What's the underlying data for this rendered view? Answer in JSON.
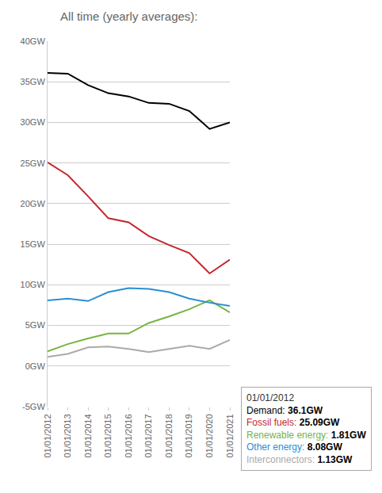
{
  "chart_data": {
    "type": "line",
    "title": "All time (yearly averages):",
    "categories": [
      "01/01/2012",
      "01/01/2013",
      "01/01/2014",
      "01/01/2015",
      "01/01/2016",
      "01/01/2017",
      "01/01/2018",
      "01/01/2019",
      "01/01/2020",
      "01/01/2021"
    ],
    "series": [
      {
        "name": "Demand",
        "color": "#000000",
        "values": [
          36.1,
          36.0,
          34.6,
          33.6,
          33.2,
          32.4,
          32.3,
          31.4,
          29.2,
          30.0
        ]
      },
      {
        "name": "Fossil fuels",
        "color": "#c0282e",
        "values": [
          25.09,
          23.5,
          20.9,
          18.2,
          17.7,
          16.0,
          14.9,
          13.9,
          11.4,
          13.1
        ]
      },
      {
        "name": "Renewable energy",
        "color": "#77b43f",
        "values": [
          1.81,
          2.7,
          3.4,
          4.0,
          4.0,
          5.3,
          6.1,
          7.0,
          8.1,
          6.6
        ]
      },
      {
        "name": "Other energy",
        "color": "#2a8fd1",
        "values": [
          8.08,
          8.3,
          8.0,
          9.1,
          9.6,
          9.5,
          9.1,
          8.3,
          7.8,
          7.4
        ]
      },
      {
        "name": "Interconnectors",
        "color": "#aaaaaa",
        "values": [
          1.13,
          1.5,
          2.3,
          2.4,
          2.1,
          1.7,
          2.1,
          2.5,
          2.1,
          3.2
        ]
      }
    ],
    "ylim": [
      -5,
      40
    ],
    "yticks": [
      {
        "value": -5,
        "label": "-5GW"
      },
      {
        "value": 0,
        "label": "0GW"
      },
      {
        "value": 5,
        "label": "5GW"
      },
      {
        "value": 10,
        "label": "10GW"
      },
      {
        "value": 15,
        "label": "15GW"
      },
      {
        "value": 20,
        "label": "20GW"
      },
      {
        "value": 25,
        "label": "25GW"
      },
      {
        "value": 30,
        "label": "30GW"
      },
      {
        "value": 35,
        "label": "35GW"
      },
      {
        "value": 40,
        "label": "40GW"
      }
    ],
    "grid": true,
    "annotations": [
      "01/01/2012",
      "Demand: 36.1GW",
      "Fossil fuels: 25.09GW",
      "Renewable energy: 1.81GW",
      "Other energy: 8.08GW",
      "Interconnectors: 1.13GW"
    ]
  }
}
